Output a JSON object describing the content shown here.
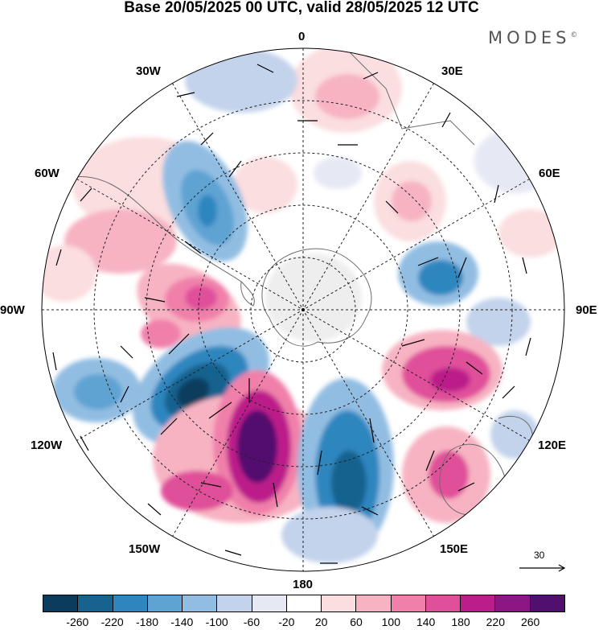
{
  "title": "Base 20/05/2025 00 UTC, valid 28/05/2025 12 UTC",
  "brand": "MODES",
  "brand_mark": "©",
  "longitude_labels": {
    "n": "0",
    "e30": "30E",
    "e60": "60E",
    "e90": "90E",
    "e120": "120E",
    "e150": "150E",
    "s": "180",
    "w150": "150W",
    "w120": "120W",
    "w90": "90W",
    "w60": "60W",
    "w30": "30W"
  },
  "vector_scale_label": "30",
  "colorbar": {
    "ticks": [
      "-260",
      "-220",
      "-180",
      "-140",
      "-100",
      "-60",
      "-20",
      "20",
      "60",
      "100",
      "140",
      "180",
      "220",
      "260"
    ],
    "colors": [
      "#0b3c5d",
      "#17628f",
      "#2f86bf",
      "#5fa3d3",
      "#92bde2",
      "#c3d3ec",
      "#e6e8f4",
      "#ffffff",
      "#fbdedf",
      "#f7b3c2",
      "#f080aa",
      "#e0509a",
      "#bb1d8a",
      "#8a1784",
      "#52106e"
    ]
  }
}
